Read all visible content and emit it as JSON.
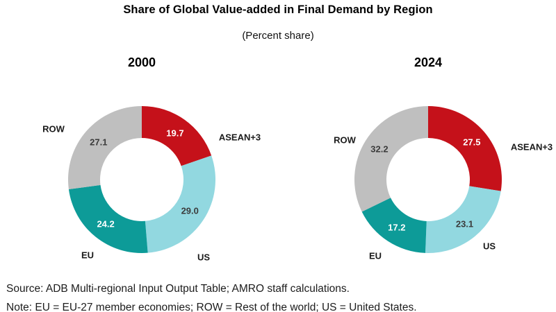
{
  "header": {
    "title": "Share of Global Value-added in Final Demand by Region",
    "subtitle": "(Percent share)"
  },
  "chart_data": [
    {
      "type": "pie",
      "variant": "donut",
      "title": "2000",
      "categories": [
        "ASEAN+3",
        "US",
        "EU",
        "ROW"
      ],
      "values": [
        19.7,
        29.0,
        24.2,
        27.1
      ],
      "colors": [
        "#C5111A",
        "#92D8E0",
        "#0D9B98",
        "#BFBFBF"
      ],
      "value_label_colors": [
        "#FFFFFF",
        "#3B3B3B",
        "#FFFFFF",
        "#3B3B3B"
      ],
      "unit": "percent",
      "start_angle_deg": 0,
      "direction": "clockwise",
      "donut_hole_ratio": 0.57,
      "legend": "labels placed around donut"
    },
    {
      "type": "pie",
      "variant": "donut",
      "title": "2024",
      "categories": [
        "ASEAN+3",
        "US",
        "EU",
        "ROW"
      ],
      "values": [
        27.5,
        23.1,
        17.2,
        32.2
      ],
      "colors": [
        "#C5111A",
        "#92D8E0",
        "#0D9B98",
        "#BFBFBF"
      ],
      "value_label_colors": [
        "#FFFFFF",
        "#3B3B3B",
        "#FFFFFF",
        "#3B3B3B"
      ],
      "unit": "percent",
      "start_angle_deg": 0,
      "direction": "clockwise",
      "donut_hole_ratio": 0.57,
      "legend": "labels placed around donut"
    }
  ],
  "footer": {
    "source": "Source: ADB Multi-regional Input Output Table; AMRO staff calculations.",
    "note": "Note: EU = EU-27 member economies; ROW = Rest of the world; US = United States."
  }
}
